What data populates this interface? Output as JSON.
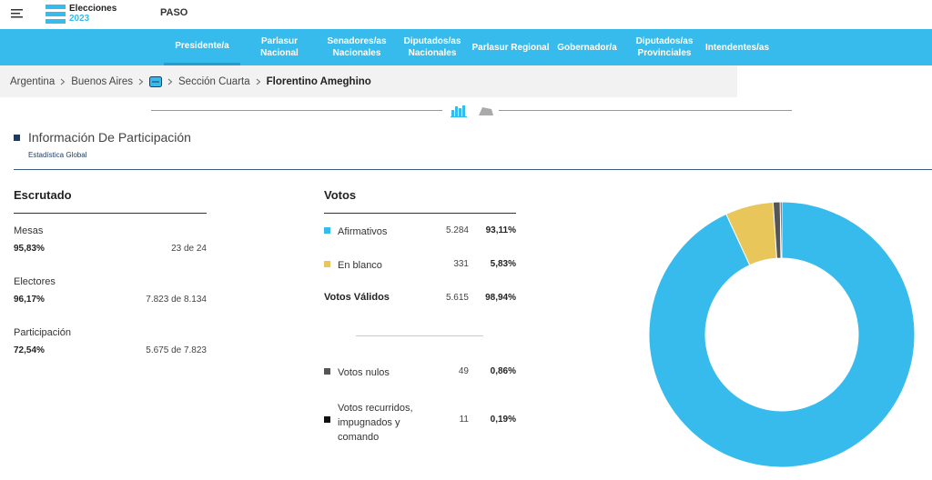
{
  "header": {
    "logo_line1": "Elecciones",
    "logo_line2": "2023",
    "election": "PASO"
  },
  "nav": [
    "Presidente/a",
    "Parlasur Nacional",
    "Senadores/as Nacionales",
    "Diputados/as Nacionales",
    "Parlasur Regional",
    "Gobernador/a",
    "Diputados/as Provinciales",
    "Intendentes/as"
  ],
  "breadcrumb": [
    "Argentina",
    "Buenos Aires",
    "Sección Cuarta",
    "Florentino Ameghino"
  ],
  "section": {
    "title": "Información De Participación",
    "subtitle": "Estadística Global"
  },
  "escrutado": {
    "title": "Escrutado",
    "rows": [
      {
        "label": "Mesas",
        "percent": "95,83%",
        "detail": "23 de 24"
      },
      {
        "label": "Electores",
        "percent": "96,17%",
        "detail": "7.823 de 8.134"
      },
      {
        "label": "Participación",
        "percent": "72,54%",
        "detail": "5.675 de 7.823"
      }
    ]
  },
  "votos": {
    "title": "Votos",
    "rows": [
      {
        "label": "Afirmativos",
        "count": "5.284",
        "percent": "93,11%",
        "color": "#37bbed"
      },
      {
        "label": "En blanco",
        "count": "331",
        "percent": "5,83%",
        "color": "#e8c65a"
      },
      {
        "label": "Votos Válidos",
        "count": "5.615",
        "percent": "98,94%"
      },
      {
        "label": "Votos nulos",
        "count": "49",
        "percent": "0,86%",
        "color": "#555555"
      },
      {
        "label": "Votos recurridos, impugnados y comando",
        "count": "11",
        "percent": "0,19%",
        "color": "#111111"
      }
    ]
  },
  "chart_data": {
    "type": "pie",
    "values": [
      93.11,
      5.83,
      0.86,
      0.19
    ],
    "colors": [
      "#37bbed",
      "#e8c65a",
      "#555555",
      "#111111"
    ]
  }
}
